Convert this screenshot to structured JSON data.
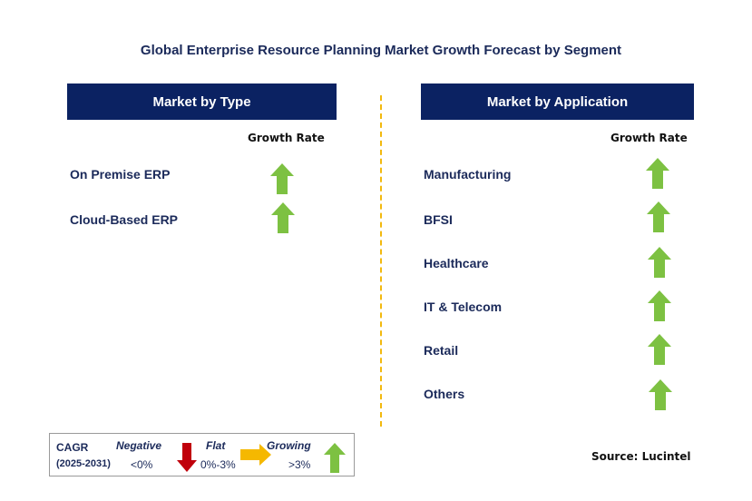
{
  "title": "Global Enterprise Resource Planning Market Growth Forecast by Segment",
  "left_panel": {
    "header": "Market by Type",
    "growth_rate_label": "Growth Rate",
    "items": [
      {
        "label": "On Premise ERP",
        "trend": "growing"
      },
      {
        "label": "Cloud-Based ERP",
        "trend": "growing"
      }
    ]
  },
  "right_panel": {
    "header": "Market by Application",
    "growth_rate_label": "Growth Rate",
    "items": [
      {
        "label": "Manufacturing",
        "trend": "growing"
      },
      {
        "label": "BFSI",
        "trend": "growing"
      },
      {
        "label": "Healthcare",
        "trend": "growing"
      },
      {
        "label": "IT & Telecom",
        "trend": "growing"
      },
      {
        "label": "Retail",
        "trend": "growing"
      },
      {
        "label": "Others",
        "trend": "growing"
      }
    ]
  },
  "legend": {
    "cagr_label": "CAGR",
    "period": "(2025-2031)",
    "negative": {
      "label": "Negative",
      "range": "<0%"
    },
    "flat": {
      "label": "Flat",
      "range": "0%-3%"
    },
    "growing": {
      "label": "Growing",
      "range": ">3%"
    }
  },
  "source": "Source: Lucintel",
  "colors": {
    "header_bg": "#0b2262",
    "growing": "#7dc142",
    "flat": "#f5b800",
    "negative": "#c0000b",
    "divider": "#f2b90f"
  }
}
